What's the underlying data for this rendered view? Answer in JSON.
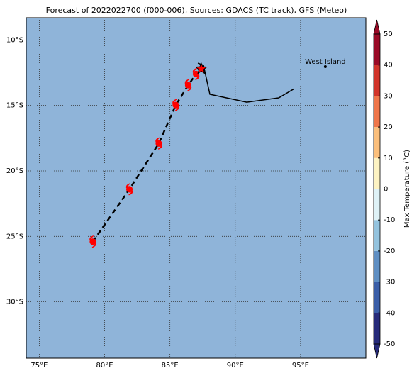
{
  "title": "Forecast of 2022022700 (f000-006), Sources: GDACS (TC track), GFS (Meteo)",
  "map": {
    "xlim": [
      74,
      100
    ],
    "ylim": [
      -34.3,
      -8.3
    ],
    "xticks": [
      {
        "value": 75,
        "label": "75°E"
      },
      {
        "value": 80,
        "label": "80°E"
      },
      {
        "value": 85,
        "label": "85°E"
      },
      {
        "value": 90,
        "label": "90°E"
      },
      {
        "value": 95,
        "label": "95°E"
      }
    ],
    "yticks": [
      {
        "value": -10,
        "label": "10°S"
      },
      {
        "value": -15,
        "label": "15°S"
      },
      {
        "value": -20,
        "label": "20°S"
      },
      {
        "value": -25,
        "label": "25°S"
      },
      {
        "value": -30,
        "label": "30°S"
      }
    ],
    "grid": true,
    "forecast_track": {
      "lon": [
        79.1,
        81.9,
        84.15,
        85.45,
        86.4,
        87.0
      ],
      "lat": [
        -25.4,
        -21.4,
        -17.9,
        -14.97,
        -13.45,
        -12.6
      ]
    },
    "current_position": {
      "lon": 87.4,
      "lat": -12.2
    },
    "observed_track": {
      "lon": [
        87.14,
        87.57,
        88.06,
        90.88,
        93.33,
        94.52
      ],
      "lat": [
        -11.77,
        -11.93,
        -14.15,
        -14.75,
        -14.42,
        -13.72
      ]
    },
    "places": [
      {
        "name": "West Island",
        "lon": 96.9,
        "lat": -12.04
      }
    ]
  },
  "colorbar": {
    "label": "Max Temperature (°C)",
    "lim": [
      -50,
      50
    ],
    "ticks": [
      -50,
      -40,
      -30,
      -20,
      -10,
      0,
      10,
      20,
      30,
      40,
      50
    ],
    "colors": [
      "#262a7a",
      "#3a5ea8",
      "#5f8fc3",
      "#94c3de",
      "#dff2f7",
      "#fdf3c3",
      "#fbbf7c",
      "#f0764a",
      "#d2342a",
      "#9a0a26"
    ]
  }
}
